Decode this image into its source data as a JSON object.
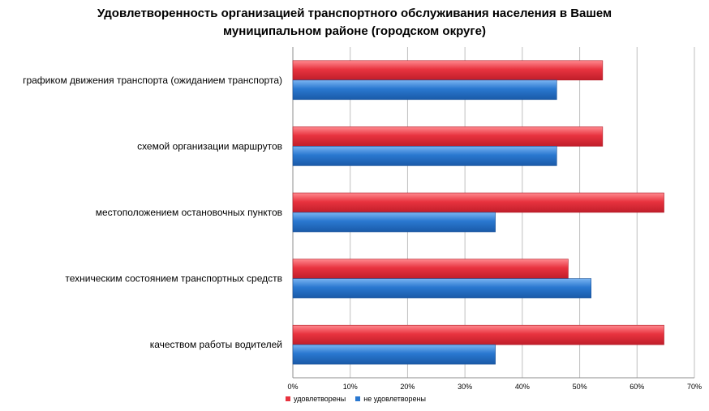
{
  "chart_data": {
    "type": "bar",
    "orientation": "horizontal",
    "title_lines": [
      "Удовлетворенность организацией транспортного обслуживания населения в Вашем",
      "муниципальном районе (городском округе)"
    ],
    "categories": [
      "графиком движения транспорта  (ожиданием транспорта)",
      "схемой организации маршрутов",
      "местоположением  остановочных  пунктов",
      "техническим состоянием  транспортных  средств",
      "качеством работы  водителей"
    ],
    "series": [
      {
        "name": "удовлетворены",
        "color": "#e8333f",
        "values": [
          54,
          54,
          64.7,
          48,
          64.7
        ]
      },
      {
        "name": "не удовлетворены",
        "color": "#2a78d0",
        "values": [
          46,
          46,
          35.3,
          52,
          35.3
        ]
      }
    ],
    "xlim": [
      0,
      70
    ],
    "xticks": [
      "0%",
      "10%",
      "20%",
      "30%",
      "40%",
      "50%",
      "60%",
      "70%"
    ],
    "grid": true,
    "legend_position": "bottom"
  }
}
